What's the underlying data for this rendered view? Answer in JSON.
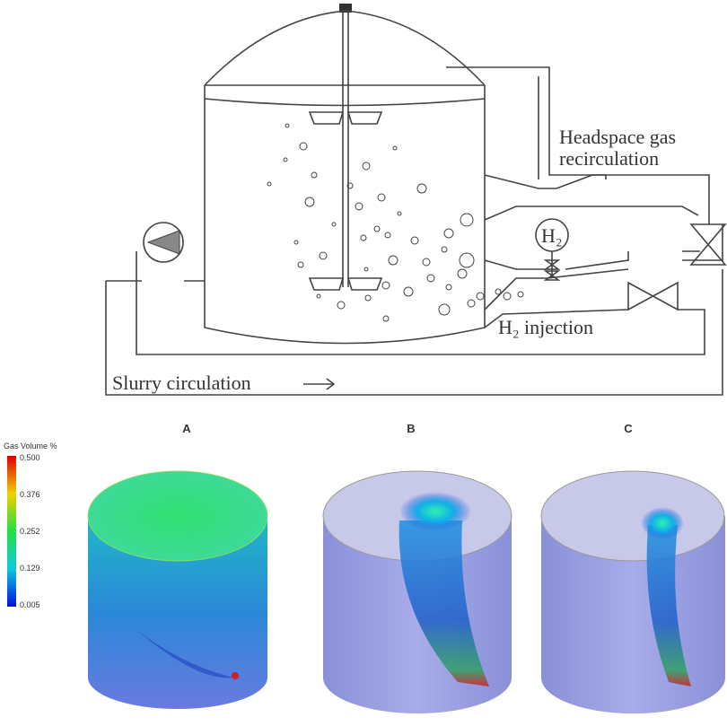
{
  "diagram": {
    "headspace_label": [
      "Headspace gas",
      "recirculation"
    ],
    "h2_node": "H₂",
    "injection_label": "H₂ injection",
    "slurry_label": "Slurry circulation"
  },
  "panels": [
    {
      "label": "A"
    },
    {
      "label": "B"
    },
    {
      "label": "C"
    }
  ],
  "colorbar": {
    "title": "Gas Volume %",
    "ticks": [
      "0.500",
      "0.376",
      "0.252",
      "0.129",
      "0.005"
    ]
  }
}
